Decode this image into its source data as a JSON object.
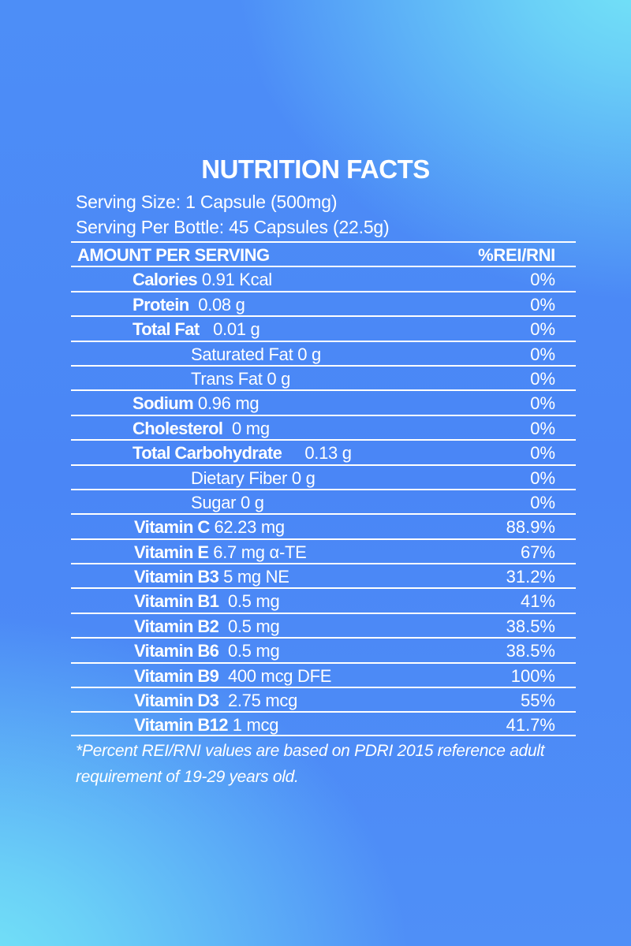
{
  "title": "NUTRITION FACTS",
  "serving_size": "Serving Size: 1 Capsule (500mg)",
  "serving_per_bottle": "Serving Per Bottle: 45 Capsules (22.5g)",
  "header": {
    "left": "AMOUNT PER SERVING",
    "right": "%REI/RNI"
  },
  "rows": [
    {
      "name": "Calories",
      "amount": "0.91 Kcal",
      "percent": "0%"
    },
    {
      "name": "Protein",
      "amount": "0.08 g",
      "percent": "0%"
    },
    {
      "name": "Total Fat",
      "amount": "0.01 g",
      "percent": "0%"
    },
    {
      "name": "",
      "amount": "Saturated Fat  0 g",
      "percent": "0%"
    },
    {
      "name": "",
      "amount": "Trans Fat 0 g",
      "percent": "0%"
    },
    {
      "name": "Sodium",
      "amount": "0.96 mg",
      "percent": "0%"
    },
    {
      "name": "Cholesterol",
      "amount": "0 mg",
      "percent": "0%"
    },
    {
      "name": "Total Carbohydrate",
      "amount": "0.13 g",
      "percent": "0%"
    },
    {
      "name": "",
      "amount": "Dietary Fiber 0 g",
      "percent": "0%"
    },
    {
      "name": "",
      "amount": "Sugar 0 g",
      "percent": "0%"
    },
    {
      "name": "Vitamin C",
      "amount": "62.23 mg",
      "percent": "88.9%"
    },
    {
      "name": "Vitamin E",
      "amount": "6.7 mg α-TE",
      "percent": "67%"
    },
    {
      "name": "Vitamin B3",
      "amount": "5 mg NE",
      "percent": "31.2%"
    },
    {
      "name": "Vitamin B1",
      "amount": "0.5 mg",
      "percent": "41%"
    },
    {
      "name": "Vitamin B2",
      "amount": "0.5 mg",
      "percent": "38.5%"
    },
    {
      "name": "Vitamin B6",
      "amount": "0.5 mg",
      "percent": "38.5%"
    },
    {
      "name": "Vitamin B9",
      "amount": "400 mcg DFE",
      "percent": "100%"
    },
    {
      "name": "Vitamin D3",
      "amount": "2.75 mcg",
      "percent": "55%"
    },
    {
      "name": "Vitamin B12",
      "amount": "1 mcg",
      "percent": "41.7%"
    }
  ],
  "footnote": "*Percent REI/RNI values are based on PDRI 2015 reference adult requirement of 19-29 years old.",
  "colors": {
    "background": "#4a86f6",
    "highlight": "#74e6f7",
    "text": "#ffffff"
  }
}
